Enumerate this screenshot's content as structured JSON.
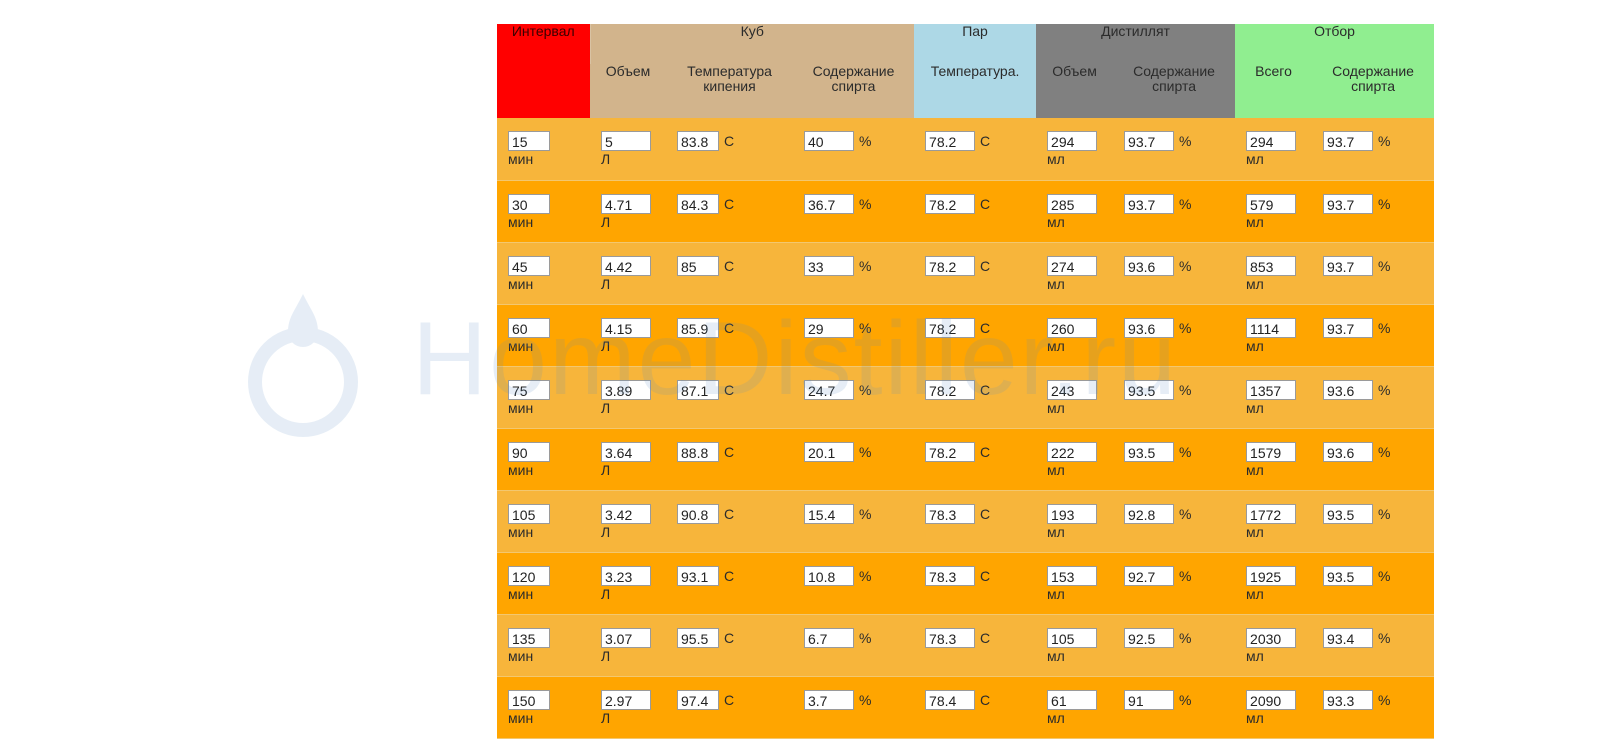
{
  "header": {
    "interval": "Интервал",
    "kub": "Куб",
    "par": "Пар",
    "distillate": "Дистиллят",
    "otbor": "Отбор",
    "kub_volume": "Объем",
    "kub_temp": "Температура кипения",
    "kub_alcohol": "Содержание спирта",
    "par_temp": "Температура.",
    "dist_volume": "Объем",
    "dist_alcohol": "Содержание спирта",
    "otbor_total": "Всего",
    "otbor_alcohol": "Содержание спирта"
  },
  "units": {
    "min": "мин",
    "liter": "Л",
    "celsius": "С",
    "percent": "%",
    "ml": "мл"
  },
  "watermark": "HomeDistiller.ru",
  "rows": [
    {
      "interval": "15",
      "kub_volume": "5",
      "kub_temp": "83.8",
      "kub_alcohol": "40",
      "par_temp": "78.2",
      "dist_volume": "294",
      "dist_alcohol": "93.7",
      "total": "294",
      "total_alcohol": "93.7"
    },
    {
      "interval": "30",
      "kub_volume": "4.71",
      "kub_temp": "84.3",
      "kub_alcohol": "36.7",
      "par_temp": "78.2",
      "dist_volume": "285",
      "dist_alcohol": "93.7",
      "total": "579",
      "total_alcohol": "93.7"
    },
    {
      "interval": "45",
      "kub_volume": "4.42",
      "kub_temp": "85",
      "kub_alcohol": "33",
      "par_temp": "78.2",
      "dist_volume": "274",
      "dist_alcohol": "93.6",
      "total": "853",
      "total_alcohol": "93.7"
    },
    {
      "interval": "60",
      "kub_volume": "4.15",
      "kub_temp": "85.9",
      "kub_alcohol": "29",
      "par_temp": "78.2",
      "dist_volume": "260",
      "dist_alcohol": "93.6",
      "total": "1114",
      "total_alcohol": "93.7"
    },
    {
      "interval": "75",
      "kub_volume": "3.89",
      "kub_temp": "87.1",
      "kub_alcohol": "24.7",
      "par_temp": "78.2",
      "dist_volume": "243",
      "dist_alcohol": "93.5",
      "total": "1357",
      "total_alcohol": "93.6"
    },
    {
      "interval": "90",
      "kub_volume": "3.64",
      "kub_temp": "88.8",
      "kub_alcohol": "20.1",
      "par_temp": "78.2",
      "dist_volume": "222",
      "dist_alcohol": "93.5",
      "total": "1579",
      "total_alcohol": "93.6"
    },
    {
      "interval": "105",
      "kub_volume": "3.42",
      "kub_temp": "90.8",
      "kub_alcohol": "15.4",
      "par_temp": "78.3",
      "dist_volume": "193",
      "dist_alcohol": "92.8",
      "total": "1772",
      "total_alcohol": "93.5"
    },
    {
      "interval": "120",
      "kub_volume": "3.23",
      "kub_temp": "93.1",
      "kub_alcohol": "10.8",
      "par_temp": "78.3",
      "dist_volume": "153",
      "dist_alcohol": "92.7",
      "total": "1925",
      "total_alcohol": "93.5"
    },
    {
      "interval": "135",
      "kub_volume": "3.07",
      "kub_temp": "95.5",
      "kub_alcohol": "6.7",
      "par_temp": "78.3",
      "dist_volume": "105",
      "dist_alcohol": "92.5",
      "total": "2030",
      "total_alcohol": "93.4"
    },
    {
      "interval": "150",
      "kub_volume": "2.97",
      "kub_temp": "97.4",
      "kub_alcohol": "3.7",
      "par_temp": "78.4",
      "dist_volume": "61",
      "dist_alcohol": "91",
      "total": "2090",
      "total_alcohol": "93.3"
    }
  ],
  "colors": {
    "interval_header": "#ff0000",
    "kub_header": "#d2b48c",
    "par_header": "#add8e6",
    "distillate_header": "#808080",
    "otbor_header": "#90ee90",
    "row_light": "#f7b53b",
    "row_dark": "#ffa500"
  }
}
